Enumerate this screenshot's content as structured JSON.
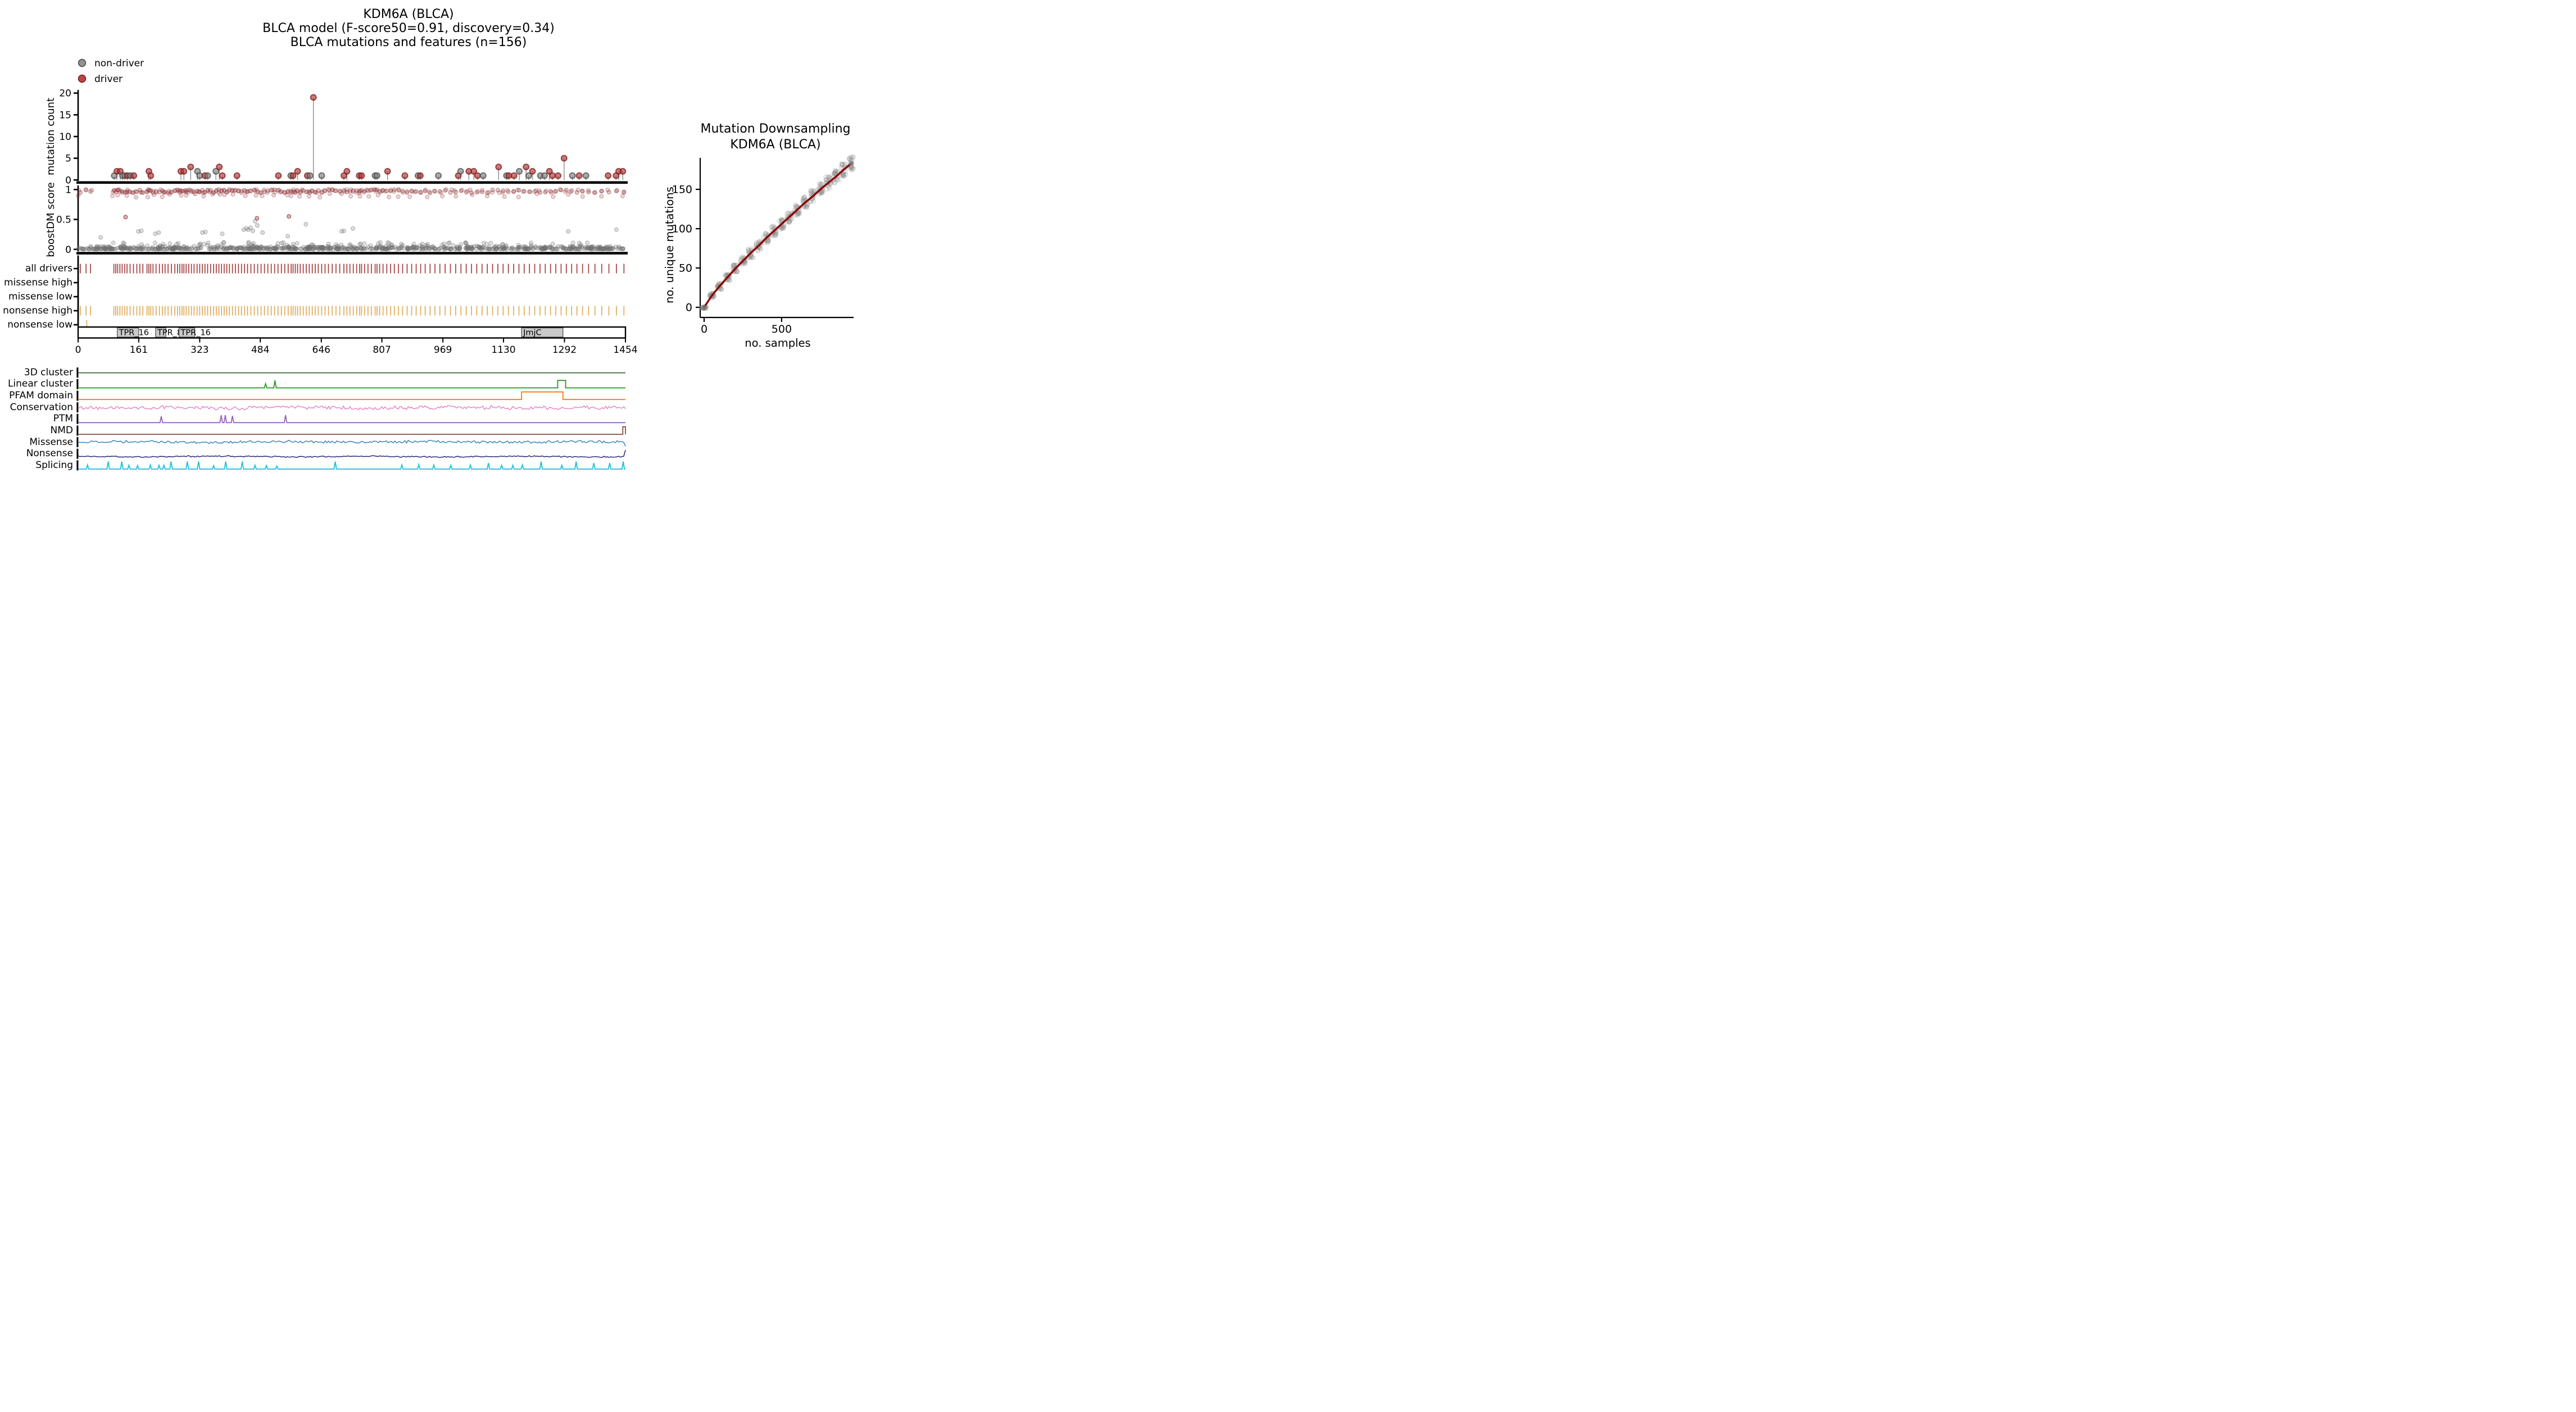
{
  "chart_data": {
    "type": "composite",
    "title_lines": [
      "KDM6A (BLCA)",
      "BLCA model (F-score50=0.91, discovery=0.34)",
      "BLCA mutations and features (n=156)"
    ],
    "legend": [
      {
        "label": "non-driver",
        "color": "#7f7f7f",
        "edge": "#4f4f4f"
      },
      {
        "label": "driver",
        "color": "#b23032",
        "edge": "#7f1d1f"
      }
    ],
    "protein_length": 1454,
    "needle": {
      "type": "lollipop",
      "ylabel": "mutation count",
      "yticks": [
        0,
        5,
        10,
        15,
        20
      ],
      "ylim": [
        0,
        20
      ],
      "lollipops": [
        [
          96,
          1,
          "nd"
        ],
        [
          103,
          2,
          "d"
        ],
        [
          112,
          2,
          "d"
        ],
        [
          118,
          1,
          "nd"
        ],
        [
          124,
          1,
          "nd"
        ],
        [
          131,
          1,
          "d"
        ],
        [
          139,
          1,
          "nd"
        ],
        [
          148,
          1,
          "d"
        ],
        [
          188,
          2,
          "d"
        ],
        [
          193,
          1,
          "d"
        ],
        [
          273,
          2,
          "d"
        ],
        [
          281,
          2,
          "d"
        ],
        [
          299,
          3,
          "d"
        ],
        [
          317,
          2,
          "nd"
        ],
        [
          323,
          1,
          "nd"
        ],
        [
          337,
          1,
          "d"
        ],
        [
          344,
          1,
          "nd"
        ],
        [
          366,
          2,
          "nd"
        ],
        [
          375,
          3,
          "d"
        ],
        [
          383,
          1,
          "d"
        ],
        [
          422,
          1,
          "d"
        ],
        [
          532,
          1,
          "d"
        ],
        [
          565,
          1,
          "nd"
        ],
        [
          571,
          1,
          "d"
        ],
        [
          583,
          2,
          "d"
        ],
        [
          609,
          1,
          "d"
        ],
        [
          616,
          1,
          "nd"
        ],
        [
          625,
          19,
          "d"
        ],
        [
          647,
          1,
          "nd"
        ],
        [
          706,
          1,
          "d"
        ],
        [
          714,
          2,
          "d"
        ],
        [
          747,
          1,
          "d"
        ],
        [
          753,
          1,
          "d"
        ],
        [
          789,
          1,
          "nd"
        ],
        [
          794,
          1,
          "nd"
        ],
        [
          822,
          2,
          "d"
        ],
        [
          868,
          1,
          "d"
        ],
        [
          903,
          1,
          "nd"
        ],
        [
          909,
          1,
          "d"
        ],
        [
          957,
          1,
          "nd"
        ],
        [
          1010,
          1,
          "d"
        ],
        [
          1016,
          2,
          "nd"
        ],
        [
          1038,
          2,
          "d"
        ],
        [
          1051,
          2,
          "d"
        ],
        [
          1061,
          1,
          "d"
        ],
        [
          1076,
          1,
          "nd"
        ],
        [
          1117,
          3,
          "d"
        ],
        [
          1138,
          1,
          "nd"
        ],
        [
          1144,
          1,
          "d"
        ],
        [
          1158,
          1,
          "d"
        ],
        [
          1172,
          2,
          "nd"
        ],
        [
          1190,
          3,
          "d"
        ],
        [
          1197,
          1,
          "nd"
        ],
        [
          1207,
          2,
          "d"
        ],
        [
          1228,
          1,
          "nd"
        ],
        [
          1239,
          1,
          "nd"
        ],
        [
          1252,
          2,
          "d"
        ],
        [
          1260,
          1,
          "d"
        ],
        [
          1275,
          1,
          "d"
        ],
        [
          1291,
          5,
          "d"
        ],
        [
          1313,
          1,
          "nd"
        ],
        [
          1331,
          1,
          "d"
        ],
        [
          1349,
          1,
          "nd"
        ],
        [
          1408,
          1,
          "d"
        ],
        [
          1429,
          1,
          "d"
        ],
        [
          1436,
          2,
          "d"
        ],
        [
          1447,
          2,
          "d"
        ]
      ]
    },
    "boostdm": {
      "type": "scatter",
      "ylabel": "boostDM score",
      "ytick_labels": [
        "0",
        "0.5",
        "1"
      ],
      "ylim": [
        0,
        1
      ],
      "red_color": "#8e2e31",
      "gray_color": "#6e6e6e",
      "red_band": {
        "score_min": 0.945,
        "score_max": 1.0,
        "second_band_min": 0.87,
        "second_band_max": 0.93
      },
      "gray_band": {
        "count": 700,
        "score_min": 0.003,
        "score_max": 0.05
      },
      "gray_mid": {
        "count": 90,
        "score_min": 0.05,
        "score_max": 0.12
      },
      "outliers_red": [
        [
          126,
          0.54
        ],
        [
          475,
          0.52
        ],
        [
          560,
          0.55
        ]
      ],
      "outliers_gray": [
        [
          60,
          0.2
        ],
        [
          160,
          0.3
        ],
        [
          168,
          0.31
        ],
        [
          205,
          0.26
        ],
        [
          214,
          0.28
        ],
        [
          330,
          0.28
        ],
        [
          338,
          0.29
        ],
        [
          383,
          0.26
        ],
        [
          440,
          0.33
        ],
        [
          447,
          0.35
        ],
        [
          452,
          0.33
        ],
        [
          458,
          0.36
        ],
        [
          464,
          0.31
        ],
        [
          470,
          0.47
        ],
        [
          476,
          0.4
        ],
        [
          490,
          0.28
        ],
        [
          557,
          0.22
        ],
        [
          605,
          0.42
        ],
        [
          700,
          0.3
        ],
        [
          706,
          0.31
        ],
        [
          730,
          0.35
        ],
        [
          1302,
          0.3
        ],
        [
          1430,
          0.33
        ]
      ]
    },
    "rails": {
      "rows": [
        {
          "label": "all drivers",
          "color": "#9b2c2c",
          "tick_set": "driver"
        },
        {
          "label": "missense high",
          "color": "#9b2c2c",
          "tick_set": "empty"
        },
        {
          "label": "missense low",
          "color": "#9b2c2c",
          "tick_set": "empty"
        },
        {
          "label": "nonsense high",
          "color": "#dca348",
          "tick_set": "driver"
        },
        {
          "label": "nonsense low",
          "color": "#dca348",
          "tick_set": "nonsense_low"
        }
      ],
      "tick_sets": {
        "driver": [
          6,
          21,
          33,
          95,
          100,
          105,
          111,
          117,
          124,
          130,
          138,
          147,
          156,
          164,
          172,
          183,
          188,
          193,
          199,
          207,
          216,
          224,
          231,
          239,
          248,
          257,
          264,
          270,
          276,
          281,
          287,
          294,
          301,
          308,
          316,
          323,
          330,
          337,
          344,
          352,
          360,
          367,
          374,
          381,
          388,
          395,
          402,
          410,
          418,
          426,
          434,
          442,
          450,
          459,
          468,
          477,
          486,
          495,
          504,
          513,
          522,
          531,
          540,
          549,
          558,
          566,
          571,
          577,
          583,
          590,
          598,
          606,
          614,
          622,
          630,
          638,
          647,
          656,
          665,
          675,
          685,
          695,
          706,
          714,
          722,
          731,
          740,
          748,
          753,
          761,
          770,
          779,
          789,
          794,
          801,
          810,
          820,
          830,
          840,
          851,
          862,
          874,
          886,
          898,
          910,
          922,
          935,
          948,
          961,
          975,
          989,
          1003,
          1017,
          1031,
          1045,
          1059,
          1073,
          1087,
          1101,
          1115,
          1129,
          1143,
          1157,
          1171,
          1185,
          1199,
          1213,
          1227,
          1241,
          1255,
          1269,
          1283,
          1297,
          1311,
          1325,
          1340,
          1356,
          1373,
          1391,
          1410,
          1430,
          1450
        ],
        "nonsense_low": [
          23
        ],
        "empty": []
      }
    },
    "domain_axis": {
      "xticks": [
        0,
        161,
        323,
        484,
        646,
        807,
        969,
        1130,
        1292,
        1454
      ],
      "domains": [
        {
          "start": 104,
          "end": 161,
          "label": "TPR_16"
        },
        {
          "start": 206,
          "end": 233,
          "label": "TPR_8"
        },
        {
          "start": 268,
          "end": 310,
          "label": "TPR_16"
        },
        {
          "start": 1178,
          "end": 1288,
          "label": "JmjC"
        }
      ],
      "box_fill": "#c9c9c9"
    },
    "features": [
      {
        "label": "3D cluster",
        "color": "#4e7d57",
        "kind": "flat"
      },
      {
        "label": "Linear cluster",
        "color": "#2ca02c",
        "kind": "spikes",
        "spikes": [
          [
            498,
            0.55
          ],
          [
            523,
            1.0
          ]
        ],
        "plateaus": [
          [
            1274,
            1295,
            1.0
          ]
        ]
      },
      {
        "label": "PFAM domain",
        "color": "#ff7f0e",
        "kind": "step",
        "plateaus": [
          [
            1178,
            1288,
            1.0
          ]
        ]
      },
      {
        "label": "Conservation",
        "color": "#e47fc5",
        "kind": "noise",
        "mean": 0.45,
        "amp": 0.3,
        "seed": 11
      },
      {
        "label": "PTM",
        "color": "#9569be",
        "kind": "spikes",
        "spikes": [
          [
            221,
            0.85
          ],
          [
            380,
            1.0
          ],
          [
            391,
            1.0
          ],
          [
            410,
            0.9
          ],
          [
            551,
            1.0
          ]
        ],
        "plateaus": []
      },
      {
        "label": "NMD",
        "color": "#8c5a4b",
        "kind": "spikes",
        "spikes": [],
        "plateaus": [
          [
            1447,
            1454,
            1.0
          ]
        ]
      },
      {
        "label": "Missense",
        "color": "#2d7fb8",
        "kind": "noise",
        "mean": 0.52,
        "amp": 0.2,
        "seed": 37,
        "end_dip": true
      },
      {
        "label": "Nonsense",
        "color": "#1b1b6f",
        "kind": "noise",
        "mean": 0.12,
        "amp": 0.1,
        "seed": 71,
        "end_spike": true
      },
      {
        "label": "Splicing",
        "color": "#27c0da",
        "kind": "spikes",
        "spikes": [
          [
            25,
            0.55
          ],
          [
            80,
            1
          ],
          [
            116,
            1
          ],
          [
            135,
            0.5
          ],
          [
            158,
            0.45
          ],
          [
            192,
            0.55
          ],
          [
            215,
            0.5
          ],
          [
            228,
            0.5
          ],
          [
            247,
            1
          ],
          [
            290,
            1
          ],
          [
            320,
            1
          ],
          [
            360,
            0.45
          ],
          [
            392,
            1
          ],
          [
            436,
            1
          ],
          [
            470,
            0.5
          ],
          [
            500,
            0.45
          ],
          [
            528,
            0.4
          ],
          [
            683,
            1
          ],
          [
            860,
            0.55
          ],
          [
            905,
            0.6
          ],
          [
            945,
            0.55
          ],
          [
            990,
            0.5
          ],
          [
            1042,
            0.55
          ],
          [
            1090,
            0.8
          ],
          [
            1125,
            0.5
          ],
          [
            1155,
            0.5
          ],
          [
            1180,
            0.55
          ],
          [
            1230,
            1
          ],
          [
            1285,
            0.5
          ],
          [
            1323,
            1
          ],
          [
            1370,
            0.8
          ],
          [
            1412,
            0.8
          ],
          [
            1448,
            1
          ]
        ],
        "plateaus": []
      }
    ],
    "downsampling": {
      "type": "scatter",
      "title_lines": [
        "Mutation Downsampling",
        "KDM6A (BLCA)"
      ],
      "xlabel": "no. samples",
      "ylabel": "no. unique mutations",
      "xticks": [
        0,
        500
      ],
      "yticks": [
        0,
        50,
        100,
        150
      ],
      "curve_color": "#8b0000",
      "point_color": "#888888",
      "cluster_x": [
        0,
        50,
        100,
        150,
        200,
        250,
        300,
        350,
        400,
        450,
        500,
        550,
        600,
        650,
        700,
        750,
        800,
        850,
        900,
        950
      ],
      "cluster_mean": [
        0,
        15,
        27,
        38,
        49,
        59,
        69,
        78,
        88,
        97,
        106,
        115,
        124,
        133,
        141,
        150,
        158,
        166,
        175,
        183
      ],
      "points_per_cluster": 22,
      "final_point": [
        950,
        183
      ]
    }
  }
}
